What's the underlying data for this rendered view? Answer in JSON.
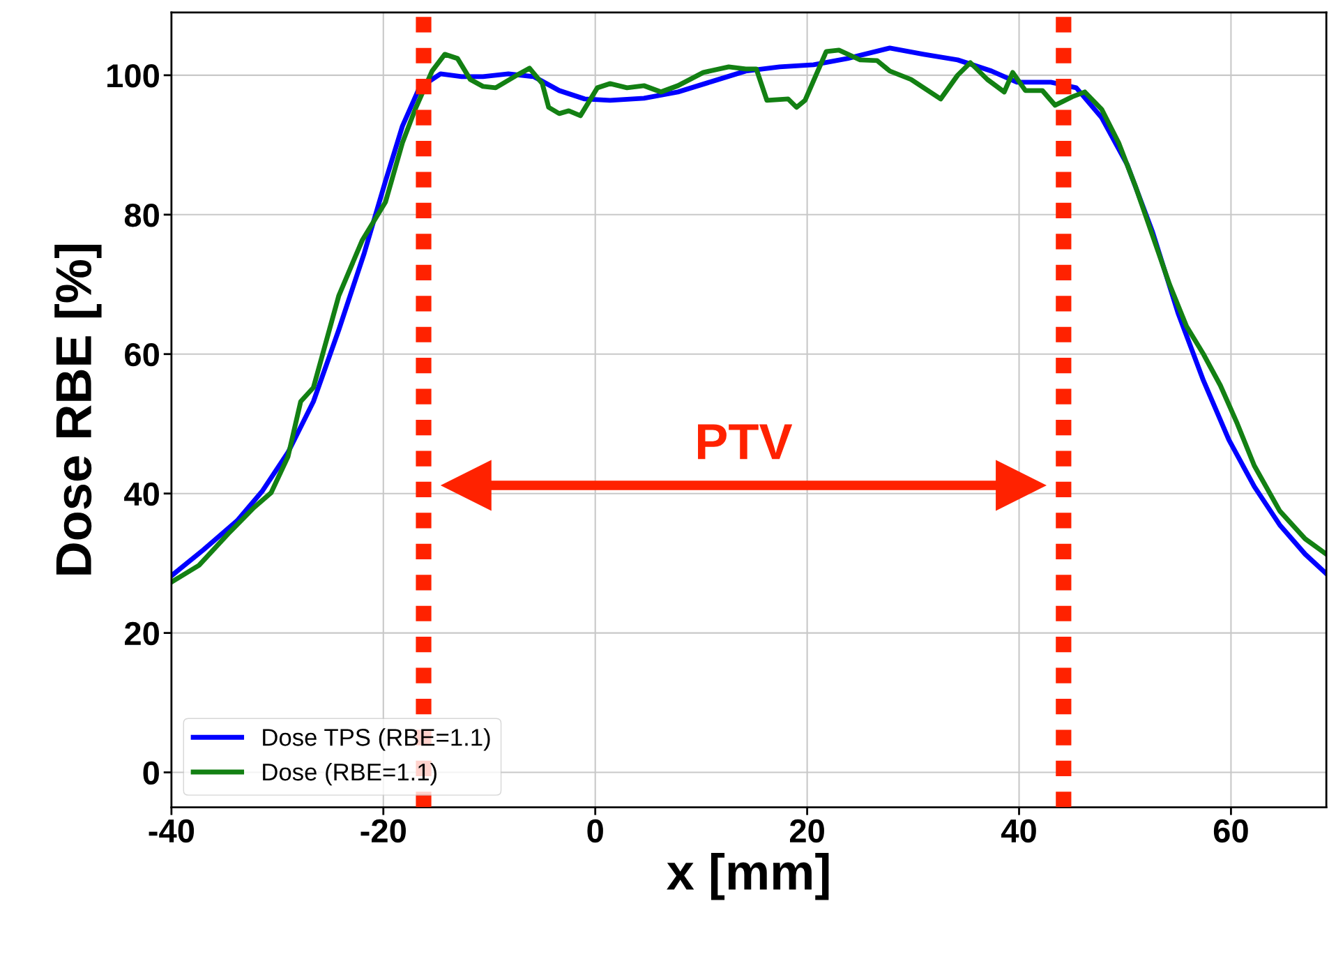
{
  "chart_data": {
    "type": "line",
    "xlabel": "x [mm]",
    "ylabel": "Dose RBE [%]",
    "xlim": [
      -40,
      69
    ],
    "xticks": [
      -40,
      -20,
      0,
      20,
      40,
      60
    ],
    "ylim": [
      -5,
      109
    ],
    "yticks": [
      0,
      20,
      40,
      60,
      80,
      100
    ],
    "grid": true,
    "legend": "bottom left",
    "line_style": "solid",
    "marker": "none",
    "series": [
      {
        "name": "Dose TPS (RBE=1.1)",
        "color": "#0000ff",
        "x": [
          -40,
          -37,
          -33.8,
          -31.4,
          -29,
          -26.6,
          -24.2,
          -21.8,
          -19.8,
          -18.2,
          -16.6,
          -14.6,
          -12.6,
          -10.6,
          -8.2,
          -5.8,
          -3.4,
          -1,
          1.4,
          4.6,
          7.8,
          11,
          14.2,
          17.4,
          20.6,
          23.8,
          27.8,
          31,
          34.2,
          37.4,
          39.8,
          43,
          45.4,
          47.8,
          50.2,
          52.6,
          55,
          57.4,
          59.8,
          62.2,
          64.6,
          67,
          69
        ],
        "values": [
          28.2,
          31.9,
          36.1,
          40.4,
          45.9,
          53.2,
          63.5,
          74.5,
          84.8,
          92.7,
          98.2,
          100.2,
          99.8,
          99.8,
          100.2,
          99.8,
          97.8,
          96.6,
          96.4,
          96.7,
          97.6,
          99.1,
          100.6,
          101.2,
          101.5,
          102.4,
          103.9,
          103,
          102.2,
          100.6,
          99,
          99,
          98.2,
          93.9,
          87.2,
          77.5,
          65.9,
          56.2,
          47.7,
          41,
          35.5,
          31.3,
          28.5
        ]
      },
      {
        "name": "Dose (RBE=1.1)",
        "color": "#138013",
        "x": [
          -40,
          -37.4,
          -34.6,
          -32.2,
          -30.6,
          -29,
          -27.8,
          -26.6,
          -24.2,
          -22,
          -19.8,
          -18.2,
          -17,
          -15.4,
          -14.2,
          -13,
          -11.8,
          -10.6,
          -9.4,
          -7.4,
          -6.2,
          -5,
          -4.4,
          -3.4,
          -2.5,
          -1.4,
          0.2,
          1.4,
          3,
          4.6,
          6.2,
          7.8,
          10.2,
          12.6,
          14.2,
          15.2,
          16.2,
          18.2,
          19,
          19.8,
          21.8,
          23,
          25,
          26.6,
          27.8,
          29.8,
          31,
          32.6,
          34.2,
          35.4,
          37,
          38.6,
          39.4,
          40.6,
          42.2,
          43.4,
          45,
          46.2,
          47.8,
          49.4,
          51,
          52.6,
          54.2,
          55.8,
          57.4,
          59,
          60.6,
          62.2,
          64.6,
          67,
          69
        ],
        "values": [
          27.3,
          29.7,
          34.3,
          38,
          40.1,
          45.3,
          53.2,
          55.2,
          68.4,
          76.3,
          81.8,
          90.3,
          95.1,
          100.6,
          103,
          102.4,
          99.4,
          98.4,
          98.2,
          100,
          101,
          98.8,
          95.4,
          94.5,
          94.9,
          94.2,
          98.2,
          98.8,
          98.2,
          98.5,
          97.6,
          98.5,
          100.4,
          101.2,
          100.9,
          100.9,
          96.4,
          96.6,
          95.4,
          96.4,
          103.4,
          103.6,
          102.2,
          102.1,
          100.6,
          99.4,
          98.2,
          96.6,
          100,
          101.8,
          99.4,
          97.6,
          100.4,
          97.8,
          97.8,
          95.7,
          96.9,
          97.6,
          95.1,
          90.3,
          84,
          77,
          70,
          64,
          60,
          55.5,
          50,
          44,
          37.5,
          33.5,
          31.3
        ]
      }
    ],
    "ref_lines": [
      {
        "axis": "x",
        "value": -16.2,
        "color": "#ff2200",
        "line_style": "dotted"
      },
      {
        "axis": "x",
        "value": 44.2,
        "color": "#ff2200",
        "line_style": "dotted"
      }
    ],
    "annotations": [
      "PTV"
    ]
  }
}
